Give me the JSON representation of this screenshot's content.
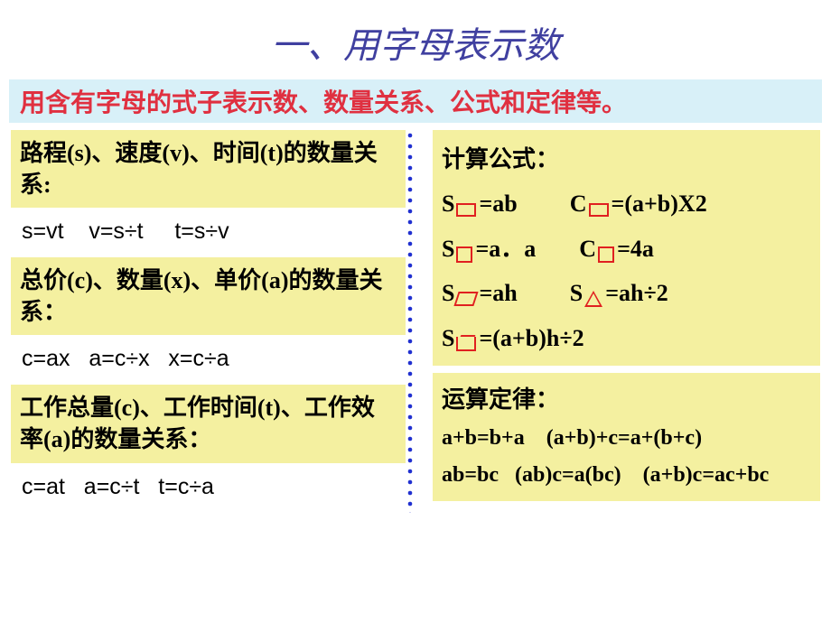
{
  "title": "一、用字母表示数",
  "subtitle": "用含有字母的式子表示数、数量关系、公式和定律等。",
  "left": {
    "block1": {
      "heading": "路程(s)、速度(v)、时间(t)的数量关系:",
      "formula": "s=vt    v=s÷t     t=s÷v"
    },
    "block2": {
      "heading": "总价(c)、数量(x)、单价(a)的数量关系：",
      "formula": "c=ax   a=c÷x   x=c÷a"
    },
    "block3": {
      "heading": "工作总量(c)、工作时间(t)、工作效率(a)的数量关系：",
      "formula": "c=at   a=c÷t   t=c÷a"
    }
  },
  "right": {
    "formulas": {
      "heading": "计算公式：",
      "r1a": "S",
      "r1a2": "=ab",
      "r1b": "C",
      "r1b2": "=(a+b)X2",
      "r2a": "S",
      "r2a2": "=a．a",
      "r2b": "C",
      "r2b2": "=4a",
      "r3a": "S",
      "r3a2": "=ah",
      "r3b": "S",
      "r3b2": "=ah÷2",
      "r4a": "S",
      "r4a2": "=(a+b)h÷2"
    },
    "laws": {
      "heading": "运算定律：",
      "l1": "a+b=b+a    (a+b)+c=a+(b+c)",
      "l2": "ab=bc   (ab)c=a(bc)    (a+b)c=ac+bc"
    }
  },
  "colors": {
    "title": "#4040a0",
    "subtitle_bg": "#d8f0f8",
    "subtitle_fg": "#e03040",
    "box_bg": "#f4f0a0",
    "shape_border": "#e02020",
    "divider_dot": "#2030d0"
  }
}
